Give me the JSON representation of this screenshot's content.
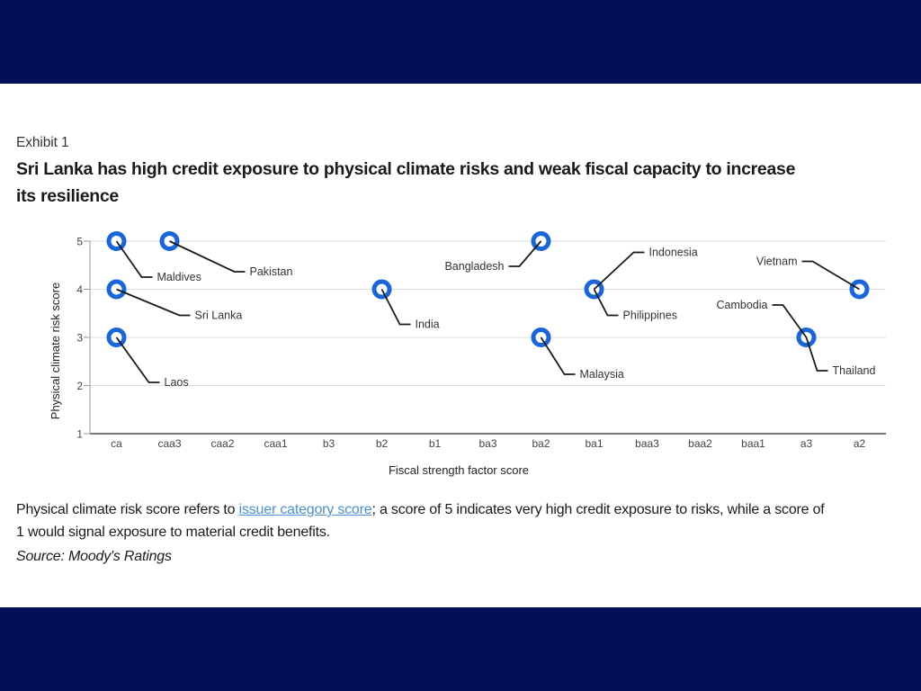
{
  "page": {
    "background_color": "#021057",
    "exhibit_label": "Exhibit 1",
    "title_line1": "Sri Lanka has high credit exposure to physical climate risks and weak fiscal capacity to increase",
    "title_line2": "its resilience"
  },
  "chart_data": {
    "type": "scatter",
    "title": "",
    "xlabel": "Fiscal strength factor score",
    "ylabel": "Physical climate risk score",
    "x_categories": [
      "ca",
      "caa3",
      "caa2",
      "caa1",
      "b3",
      "b2",
      "b1",
      "ba3",
      "ba2",
      "ba1",
      "baa3",
      "baa2",
      "baa1",
      "a3",
      "a2"
    ],
    "y_ticks": [
      1,
      2,
      3,
      4,
      5
    ],
    "ylim": [
      1,
      5
    ],
    "grid": "horizontal",
    "legend": "none",
    "marker": {
      "shape": "ring",
      "color": "#1965DB"
    },
    "points": [
      {
        "country": "Maldives",
        "x": "ca",
        "y": 5,
        "label_side": "right",
        "elbow_dx": 28,
        "elbow_dy": 40
      },
      {
        "country": "Pakistan",
        "x": "caa3",
        "y": 5,
        "label_side": "right",
        "elbow_dx": 72,
        "elbow_dy": 34
      },
      {
        "country": "Sri Lanka",
        "x": "ca",
        "y": 4,
        "label_side": "right",
        "elbow_dx": 70,
        "elbow_dy": 29
      },
      {
        "country": "Laos",
        "x": "ca",
        "y": 3,
        "label_side": "right",
        "elbow_dx": 36,
        "elbow_dy": 50
      },
      {
        "country": "India",
        "x": "b2",
        "y": 4,
        "label_side": "right",
        "elbow_dx": 20,
        "elbow_dy": 39
      },
      {
        "country": "Bangladesh",
        "x": "ba2",
        "y": 5,
        "label_side": "left",
        "elbow_dx": -24,
        "elbow_dy": 28
      },
      {
        "country": "Malaysia",
        "x": "ba2",
        "y": 3,
        "label_side": "right",
        "elbow_dx": 26,
        "elbow_dy": 41
      },
      {
        "country": "Philippines",
        "x": "ba1",
        "y": 4,
        "label_side": "right",
        "elbow_dx": 15,
        "elbow_dy": 29
      },
      {
        "country": "Indonesia",
        "x": "ba1",
        "y": 4,
        "label_side": "right",
        "elbow_dx": 44,
        "elbow_dy": -41
      },
      {
        "country": "Vietnam",
        "x": "a2",
        "y": 4,
        "label_side": "left",
        "elbow_dx": -52,
        "elbow_dy": -31
      },
      {
        "country": "Cambodia",
        "x": "a3",
        "y": 3,
        "label_side": "left",
        "elbow_dx": -26,
        "elbow_dy": -36
      },
      {
        "country": "Thailand",
        "x": "a3",
        "y": 3,
        "label_side": "right",
        "elbow_dx": 12,
        "elbow_dy": 37
      }
    ]
  },
  "footnote": {
    "pre_link": "Physical climate risk score refers to ",
    "link_text": "issuer category score",
    "post_link": "; a score of 5 indicates very high credit exposure to risks, while a score of",
    "line2": "1 would signal exposure to material credit benefits.",
    "link_color": "#4a90d3"
  },
  "source": "Source: Moody's Ratings"
}
